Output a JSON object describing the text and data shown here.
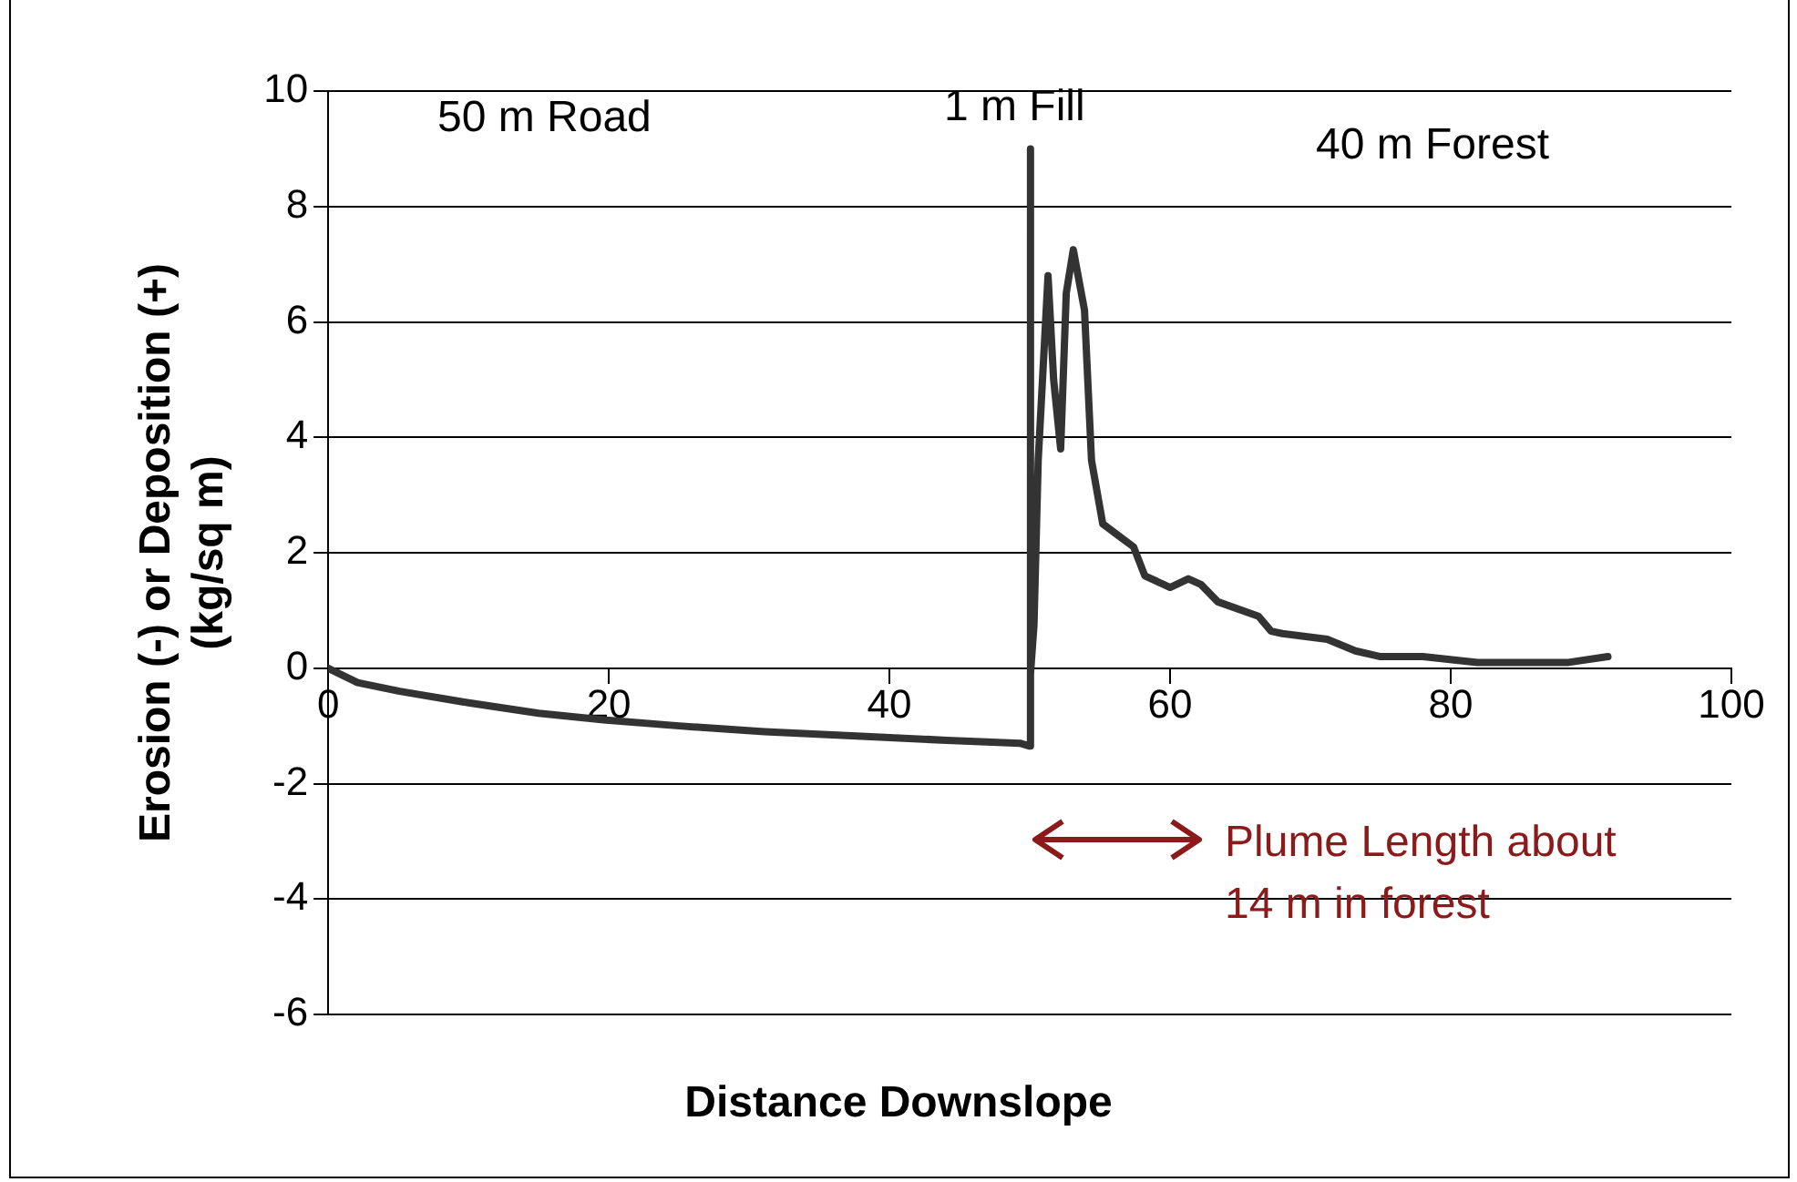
{
  "chart_data": {
    "type": "line",
    "xlabel": "Distance Downslope",
    "ylabel": "Erosion (-) or Deposition (+)\n(kg/sq m)",
    "xlim": [
      0,
      100
    ],
    "xticks": [
      0,
      20,
      40,
      60,
      80,
      100
    ],
    "ylim": [
      -6,
      10
    ],
    "yticks": [
      -6,
      -4,
      -2,
      0,
      2,
      4,
      6,
      8,
      10
    ],
    "grid": "y",
    "legend": false,
    "marker": "none",
    "line_style": "solid",
    "series": [
      {
        "color": "#333333",
        "x": [
          0,
          2.1,
          5.1,
          10,
          15,
          19.8,
          25,
          31.1,
          38,
          44.1,
          49.3,
          50,
          50,
          50.1,
          50.3,
          50.6,
          51.3,
          51.7,
          52.2,
          52.6,
          53.1,
          53.9,
          54.4,
          55.2,
          56.3,
          57.4,
          58.2,
          60,
          61.3,
          62.2,
          63.4,
          66.3,
          67.2,
          68,
          71.2,
          73.2,
          75,
          78,
          81.9,
          85,
          88.4,
          91.2
        ],
        "values": [
          0,
          -0.25,
          -0.4,
          -0.6,
          -0.78,
          -0.9,
          -1,
          -1.1,
          -1.18,
          -1.25,
          -1.3,
          -1.35,
          9,
          -0.1,
          0.75,
          3.6,
          6.8,
          5,
          3.8,
          6.5,
          7.25,
          6.2,
          3.6,
          2.5,
          2.3,
          2.1,
          1.6,
          1.4,
          1.55,
          1.45,
          1.15,
          0.9,
          0.64,
          0.6,
          0.5,
          0.3,
          0.2,
          0.2,
          0.1,
          0.1,
          0.1,
          0.2
        ]
      }
    ],
    "annotations": [
      "50 m Road",
      "1 m Fill",
      "40 m Forest",
      "Plume Length about\n14 m in forest"
    ]
  }
}
